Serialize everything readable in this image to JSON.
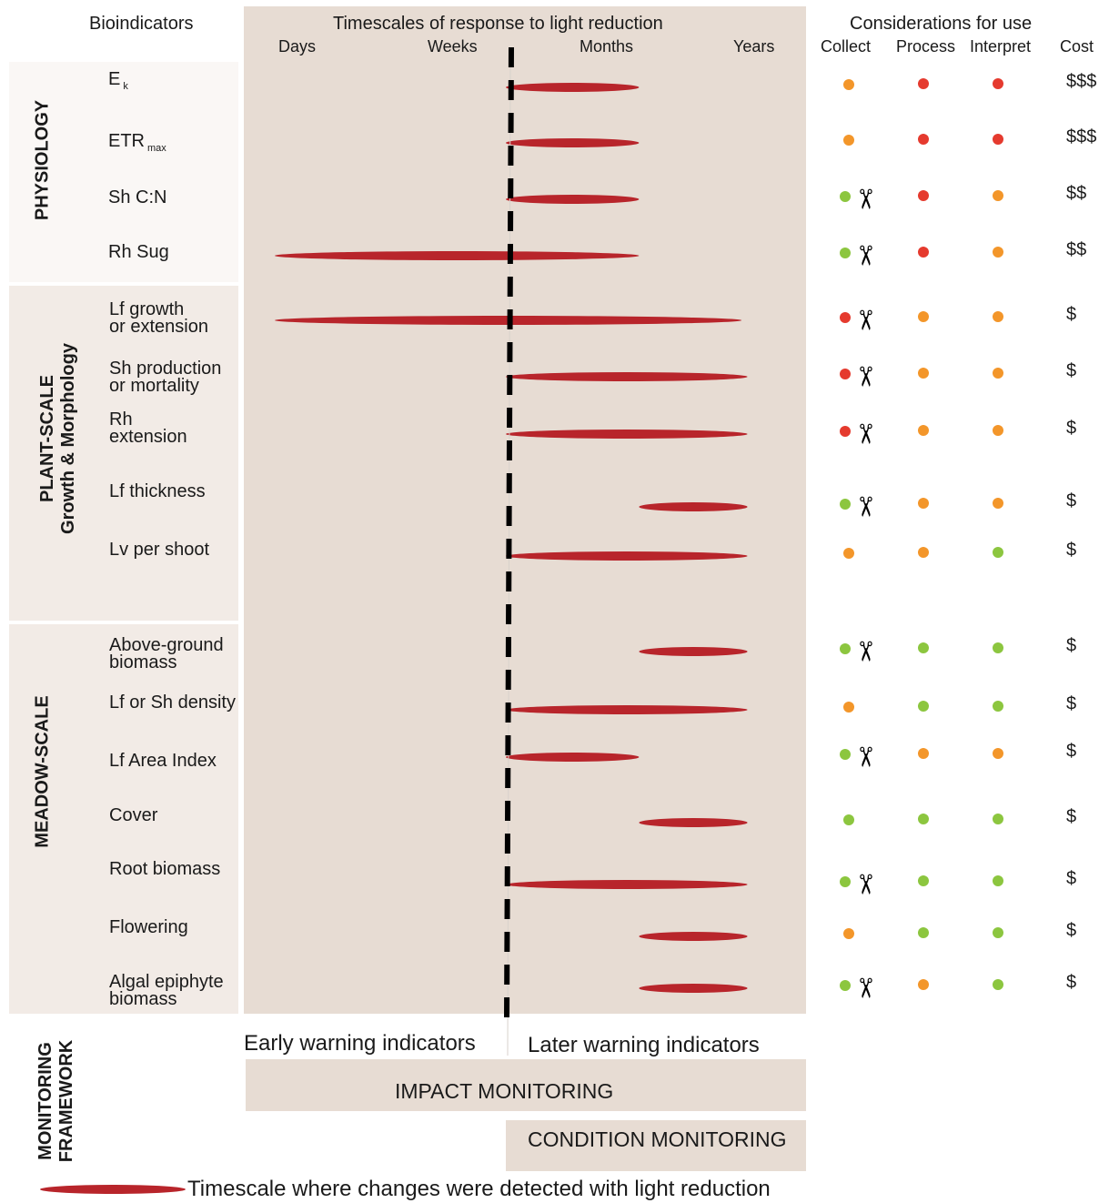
{
  "headers": {
    "bioindicators": "Bioindicators",
    "timescales": "Timescales of  response to light reduction",
    "considerations": "Considerations for use",
    "time_labels": [
      "Days",
      "Weeks",
      "Months",
      "Years"
    ],
    "consideration_cols": [
      "Collect",
      "Process",
      "Interpret",
      "Cost"
    ]
  },
  "groups": {
    "physiology": "PHYSIOLOGY",
    "plant_line1": "PLANT-SCALE",
    "plant_line2": "Growth & Morphology",
    "meadow": "MEADOW-SCALE",
    "framework_line1": "MONITORING",
    "framework_line2": "FRAMEWORK"
  },
  "colors": {
    "panel_bg": "#e7dcd3",
    "left_bg_light": "#faf7f5",
    "left_bg": "#f2ebe6",
    "bar": "#b8252b",
    "red": "#e53a2e",
    "orange": "#f3962a",
    "green": "#8cc63f"
  },
  "indicators": [
    {
      "label": "E",
      "sub": "k",
      "start": 1.5,
      "end": 2.4,
      "collect": "orange",
      "scissors": false,
      "process": "red",
      "interpret": "red",
      "cost": "$$$"
    },
    {
      "label": "ETR",
      "sub": "max",
      "start": 1.5,
      "end": 2.4,
      "collect": "orange",
      "scissors": false,
      "process": "red",
      "interpret": "red",
      "cost": "$$$"
    },
    {
      "label": "Sh C:N",
      "sub": "",
      "start": 1.5,
      "end": 2.4,
      "collect": "green",
      "scissors": true,
      "process": "red",
      "interpret": "orange",
      "cost": "$$"
    },
    {
      "label": "Rh Sug",
      "sub": "",
      "start": 0.0,
      "end": 2.4,
      "collect": "green",
      "scissors": true,
      "process": "red",
      "interpret": "orange",
      "cost": "$$"
    },
    {
      "label": "Lf growth\nor extension",
      "sub": "",
      "start": 0.0,
      "end": 3.3,
      "collect": "red",
      "scissors": true,
      "process": "orange",
      "interpret": "orange",
      "cost": "$"
    },
    {
      "label": "Sh production\nor mortality",
      "sub": "",
      "start": 1.5,
      "end": 3.4,
      "collect": "red",
      "scissors": true,
      "process": "orange",
      "interpret": "orange",
      "cost": "$"
    },
    {
      "label": "Rh\nextension",
      "sub": "",
      "start": 1.5,
      "end": 3.4,
      "collect": "red",
      "scissors": true,
      "process": "orange",
      "interpret": "orange",
      "cost": "$"
    },
    {
      "label": "Lf thickness",
      "sub": "",
      "start": 2.4,
      "end": 3.4,
      "collect": "green",
      "scissors": true,
      "process": "orange",
      "interpret": "orange",
      "cost": "$"
    },
    {
      "label": "Lv per shoot",
      "sub": "",
      "start": 1.5,
      "end": 3.4,
      "collect": "orange",
      "scissors": false,
      "process": "orange",
      "interpret": "green",
      "cost": "$"
    },
    {
      "label": "Above-ground\nbiomass",
      "sub": "",
      "start": 2.4,
      "end": 3.4,
      "collect": "green",
      "scissors": true,
      "process": "green",
      "interpret": "green",
      "cost": "$"
    },
    {
      "label": "Lf or Sh density",
      "sub": "",
      "start": 1.5,
      "end": 3.4,
      "collect": "orange",
      "scissors": false,
      "process": "green",
      "interpret": "green",
      "cost": "$"
    },
    {
      "label": "Lf Area Index",
      "sub": "",
      "start": 1.5,
      "end": 2.4,
      "collect": "green",
      "scissors": true,
      "process": "orange",
      "interpret": "orange",
      "cost": "$"
    },
    {
      "label": "Cover",
      "sub": "",
      "start": 2.4,
      "end": 3.4,
      "collect": "green",
      "scissors": false,
      "process": "green",
      "interpret": "green",
      "cost": "$"
    },
    {
      "label": "Root biomass",
      "sub": "",
      "start": 1.5,
      "end": 3.4,
      "collect": "green",
      "scissors": true,
      "process": "green",
      "interpret": "green",
      "cost": "$"
    },
    {
      "label": "Flowering",
      "sub": "",
      "start": 2.4,
      "end": 3.4,
      "collect": "orange",
      "scissors": false,
      "process": "green",
      "interpret": "green",
      "cost": "$"
    },
    {
      "label": "Algal epiphyte\nbiomass",
      "sub": "",
      "start": 2.4,
      "end": 3.4,
      "collect": "green",
      "scissors": true,
      "process": "orange",
      "interpret": "green",
      "cost": "$"
    }
  ],
  "framework": {
    "early": "Early warning indicators",
    "later": "Later warning indicators",
    "impact": "IMPACT MONITORING",
    "condition": "CONDITION MONITORING"
  },
  "legend": {
    "text": "Timescale where changes were detected with light reduction"
  }
}
